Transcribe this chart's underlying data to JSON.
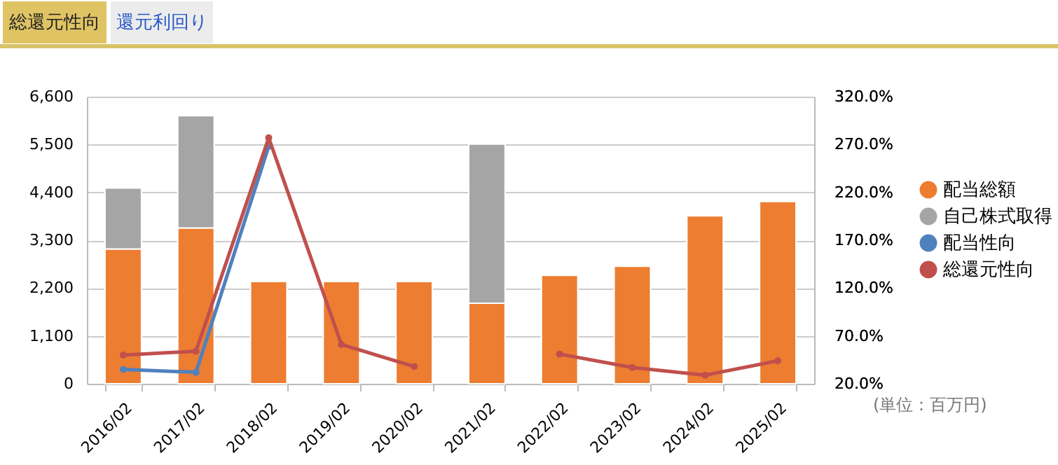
{
  "chart_data": {
    "type": "bar",
    "stacked": true,
    "categories": [
      "2016/02",
      "2017/02",
      "2018/02",
      "2019/02",
      "2020/02",
      "2021/02",
      "2022/02",
      "2023/02",
      "2024/02",
      "2025/02"
    ],
    "series": [
      {
        "name": "配当総額",
        "color": "#ed7d31",
        "values": [
          3100,
          3580,
          2350,
          2350,
          2350,
          1850,
          2490,
          2700,
          3860,
          4190
        ]
      },
      {
        "name": "自己株式取得",
        "color": "#a5a5a5",
        "values": [
          1400,
          2580,
          null,
          null,
          null,
          3660,
          null,
          null,
          null,
          null
        ]
      },
      {
        "name": "配当性向",
        "type": "line",
        "axis": "y2",
        "color": "#4f81bd",
        "values": [
          35,
          32,
          268,
          null,
          null,
          null,
          null,
          null,
          null,
          null
        ]
      },
      {
        "name": "総還元性向",
        "type": "line",
        "axis": "y2",
        "color": "#c0504d",
        "values": [
          50,
          54,
          277,
          61,
          38,
          null,
          51,
          37,
          29,
          44
        ]
      }
    ],
    "ylim": [
      0,
      6600
    ],
    "yticks": [
      {
        "value": 0,
        "label": "0"
      },
      {
        "value": 1100,
        "label": "1,100"
      },
      {
        "value": 2200,
        "label": "2,200"
      },
      {
        "value": 3300,
        "label": "3,300"
      },
      {
        "value": 4400,
        "label": "4,400"
      },
      {
        "value": 5500,
        "label": "5,500"
      },
      {
        "value": 6600,
        "label": "6,600"
      }
    ],
    "y2lim": [
      20,
      320
    ],
    "y2ticks": [
      {
        "value": 20,
        "label": "20.0%"
      },
      {
        "value": 70,
        "label": "70.0%"
      },
      {
        "value": 120,
        "label": "120.0%"
      },
      {
        "value": 170,
        "label": "170.0%"
      },
      {
        "value": 220,
        "label": "220.0%"
      },
      {
        "value": 270,
        "label": "270.0%"
      },
      {
        "value": 320,
        "label": "320.0%"
      }
    ],
    "grid": "y",
    "legend": "right",
    "marker": "circle",
    "annotations": [
      "総還元性向",
      "還元利回り",
      "(単位：百万円)"
    ]
  }
}
